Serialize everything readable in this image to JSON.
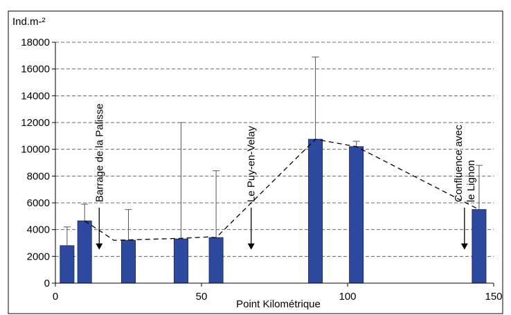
{
  "chart_data": {
    "type": "bar",
    "ylabel": "Ind.m-²",
    "xlabel": "Point Kilométrique",
    "xlim": [
      0,
      150
    ],
    "ylim": [
      0,
      18000
    ],
    "x_ticks": [
      0,
      50,
      100,
      150
    ],
    "y_ticks": [
      0,
      2000,
      4000,
      6000,
      8000,
      10000,
      12000,
      14000,
      16000,
      18000
    ],
    "grid": "horizontal dashed",
    "bar_color": "#2e4aa0",
    "bars": [
      {
        "x": 4,
        "value": 2800,
        "error_top": 4200
      },
      {
        "x": 10,
        "value": 4650,
        "error_top": 5900
      },
      {
        "x": 25,
        "value": 3200,
        "error_top": 5500
      },
      {
        "x": 43,
        "value": 3300,
        "error_top": 12000
      },
      {
        "x": 55,
        "value": 3400,
        "error_top": 8400
      },
      {
        "x": 89,
        "value": 10750,
        "error_top": 16900
      },
      {
        "x": 103,
        "value": 10200,
        "error_top": 10600
      },
      {
        "x": 145,
        "value": 5500,
        "error_top": 8800
      }
    ],
    "trend": [
      {
        "x": 10,
        "y": 4650
      },
      {
        "x": 16,
        "y": 3800
      },
      {
        "x": 20,
        "y": 3200
      },
      {
        "x": 43,
        "y": 3350
      },
      {
        "x": 52,
        "y": 3450
      },
      {
        "x": 55,
        "y": 3400
      },
      {
        "x": 89,
        "y": 10750
      },
      {
        "x": 103,
        "y": 10200
      },
      {
        "x": 145,
        "y": 5500
      }
    ],
    "annotations": [
      {
        "lines": [
          "Barrage de la Palisse"
        ],
        "x": 15,
        "arrow_to": 2500
      },
      {
        "lines": [
          "Le Puy-en-Velay"
        ],
        "x": 67,
        "arrow_to": 2500
      },
      {
        "lines": [
          "Confluence avec",
          "le Lignon"
        ],
        "x": 140,
        "arrow_to": 2500
      }
    ]
  }
}
